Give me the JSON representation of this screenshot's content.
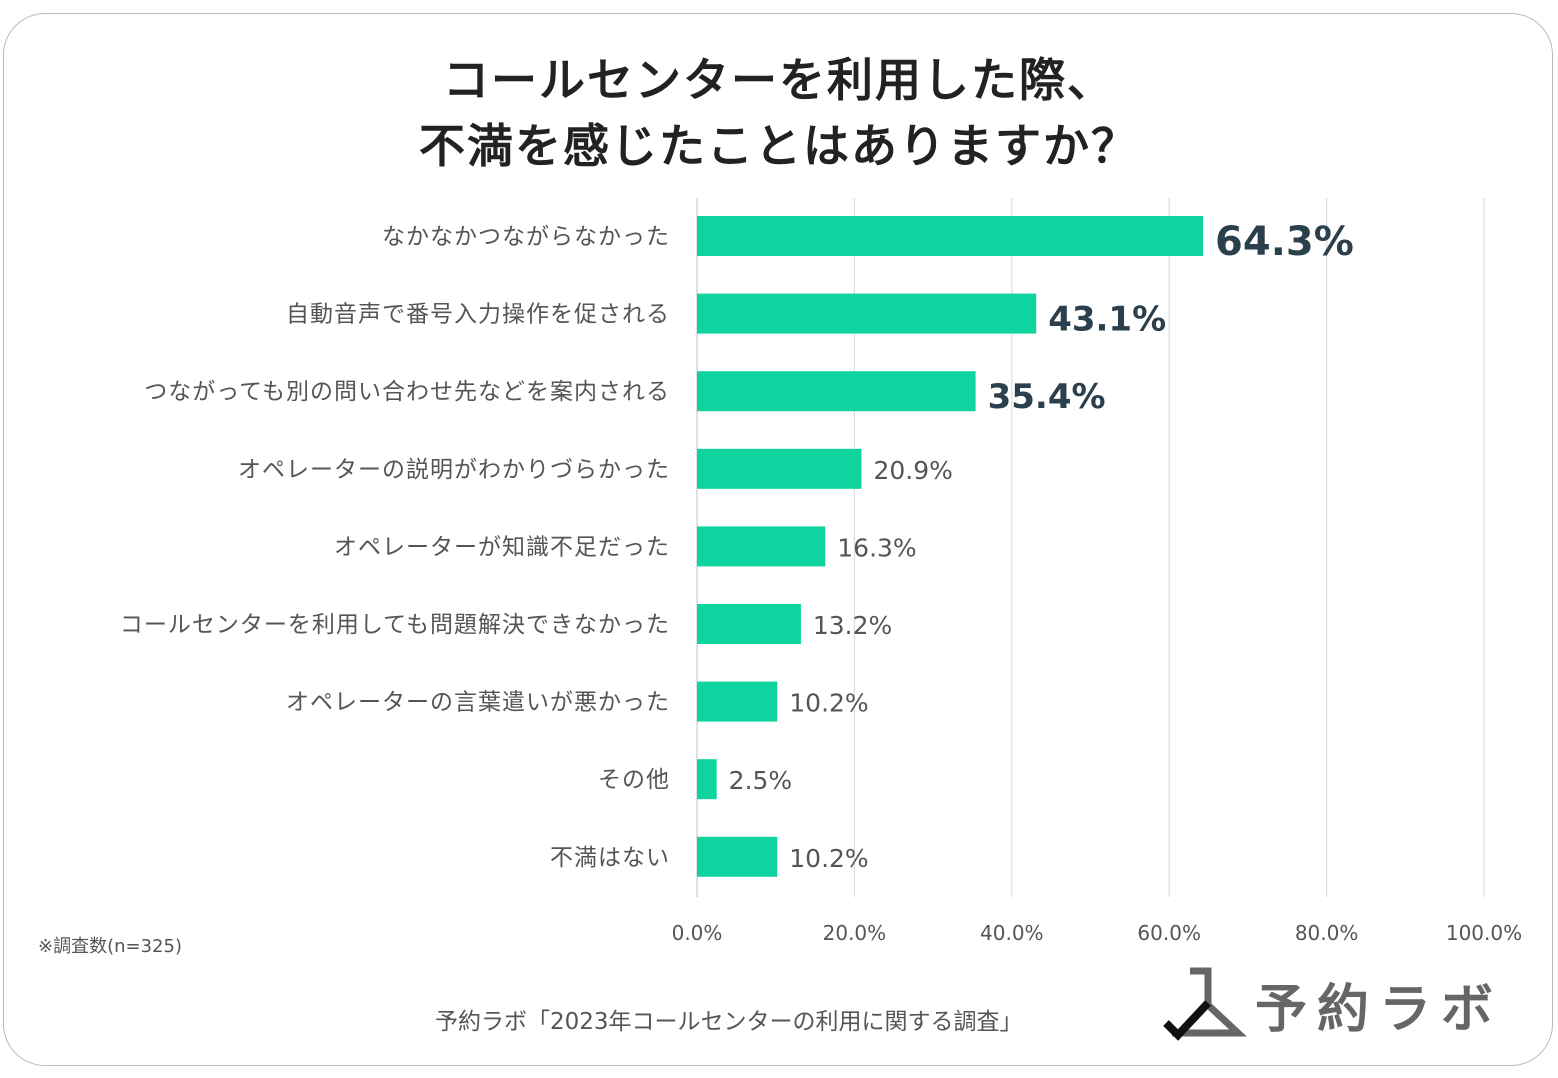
{
  "title_line1": "コールセンターを利用した際、",
  "title_line2": "不満を感じたことはありますか？",
  "note": "※調査数(n=325)",
  "source": "予約ラボ「2023年コールセンターの利用に関する調査」",
  "logo_text": "予約ラボ",
  "chart_data": {
    "type": "bar",
    "orientation": "horizontal",
    "categories": [
      "なかなかつながらなかった",
      "自動音声で番号入力操作を促される",
      "つながっても別の問い合わせ先などを案内される",
      "オペレーターの説明がわかりづらかった",
      "オペレーターが知識不足だった",
      "コールセンターを利用しても問題解決できなかった",
      "オペレーターの言葉遣いが悪かった",
      "その他",
      "不満はない"
    ],
    "values": [
      64.3,
      43.1,
      35.4,
      20.9,
      16.3,
      13.2,
      10.2,
      2.5,
      10.2
    ],
    "data_labels": [
      "64.3%",
      "43.1%",
      "35.4%",
      "20.9%",
      "16.3%",
      "13.2%",
      "10.2%",
      "2.5%",
      "10.2%"
    ],
    "xlim": [
      0,
      100
    ],
    "x_ticks": [
      "0.0%",
      "20.0%",
      "40.0%",
      "60.0%",
      "80.0%",
      "100.0%"
    ],
    "grid": true,
    "bar_color": "#0fd4a0",
    "highlight_label_color": "#2b3f4c"
  }
}
